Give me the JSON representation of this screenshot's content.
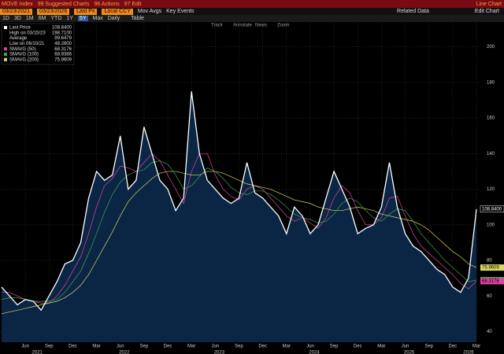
{
  "toolbar": {
    "ticker": "MOVE Index",
    "suggested": "99 Suggested Charts",
    "actions": "96 Actions",
    "edit": "97 Edit",
    "chart_kind": "Line Chart",
    "start_date": "03/23/2021",
    "end_date": "03/23/2026",
    "field": "Last Px",
    "currency": "Local CCY",
    "mov_avgs": "Mov Avgs",
    "key_events": "Key Events",
    "related": "Related Data",
    "edit_chart": "Edit Chart",
    "ranges": [
      "1D",
      "3D",
      "1M",
      "6M",
      "YTD",
      "1Y",
      "5Y",
      "Max",
      "Daily"
    ],
    "table": "Table",
    "tools": [
      "Track",
      "Annotate",
      "News",
      "Zoom"
    ]
  },
  "chart_data": {
    "type": "line",
    "area": true,
    "grid": true,
    "x": [
      "2021-03",
      "2021-04",
      "2021-05",
      "2021-06",
      "2021-07",
      "2021-08",
      "2021-09",
      "2021-10",
      "2021-11",
      "2021-12",
      "2022-01",
      "2022-02",
      "2022-03",
      "2022-04",
      "2022-05",
      "2022-06",
      "2022-07",
      "2022-08",
      "2022-09",
      "2022-10",
      "2022-11",
      "2022-12",
      "2023-01",
      "2023-02",
      "2023-03",
      "2023-04",
      "2023-05",
      "2023-06",
      "2023-07",
      "2023-08",
      "2023-09",
      "2023-10",
      "2023-11",
      "2023-12",
      "2024-01",
      "2024-02",
      "2024-03",
      "2024-04",
      "2024-05",
      "2024-06",
      "2024-07",
      "2024-08",
      "2024-09",
      "2024-10",
      "2024-11",
      "2024-12",
      "2025-01",
      "2025-02",
      "2025-03",
      "2025-04",
      "2025-05",
      "2025-06",
      "2025-07",
      "2025-08",
      "2025-09",
      "2025-10",
      "2025-11",
      "2025-12",
      "2026-01",
      "2026-02",
      "2026-03"
    ],
    "series": [
      {
        "name": "Last Price",
        "color": "#ffffff",
        "last_label": "108.8400",
        "values": [
          65,
          60,
          55,
          58,
          57,
          52,
          60,
          68,
          78,
          80,
          90,
          115,
          130,
          125,
          128,
          150,
          120,
          125,
          155,
          140,
          125,
          120,
          108,
          115,
          175,
          140,
          125,
          120,
          115,
          112,
          115,
          135,
          118,
          115,
          110,
          105,
          95,
          110,
          105,
          95,
          100,
          115,
          130,
          120,
          110,
          95,
          98,
          100,
          110,
          135,
          110,
          95,
          88,
          85,
          80,
          75,
          72,
          65,
          62,
          70,
          108.84
        ]
      },
      {
        "name": "SMAVG (100)",
        "color": "#3fa34d",
        "last_label": "68.9386",
        "values": [
          58,
          59,
          59,
          58,
          57,
          57,
          57,
          58,
          62,
          68,
          74,
          84,
          95,
          107,
          117,
          124,
          128,
          130,
          131,
          135,
          136,
          134,
          128,
          120,
          122,
          127,
          132,
          130,
          126,
          121,
          118,
          117,
          119,
          119,
          117,
          114,
          110,
          106,
          104,
          103,
          101,
          102,
          106,
          112,
          115,
          113,
          108,
          104,
          102,
          106,
          109,
          108,
          102,
          95,
          90,
          85,
          80,
          76,
          72,
          68,
          68.9386
        ]
      },
      {
        "name": "SMAVG (200)",
        "color": "#d8d860",
        "last_label": "75.9609",
        "values": [
          50,
          51,
          52,
          53,
          54,
          55,
          56,
          57,
          59,
          62,
          66,
          72,
          80,
          88,
          96,
          105,
          113,
          118,
          122,
          126,
          129,
          130,
          130,
          129,
          128,
          128,
          130,
          130,
          129,
          127,
          125,
          123,
          122,
          121,
          120,
          118,
          116,
          114,
          113,
          112,
          110,
          109,
          108,
          108,
          109,
          110,
          109,
          108,
          106,
          105,
          104,
          103,
          102,
          100,
          97,
          93,
          89,
          85,
          82,
          78,
          75.9609
        ]
      },
      {
        "name": "SMAVG (50)",
        "color": "#e0439f",
        "last_label": "68.3176",
        "values": [
          62,
          62,
          60,
          58,
          57,
          56,
          56,
          60,
          66,
          74,
          82,
          95,
          110,
          122,
          126,
          133,
          132,
          130,
          135,
          140,
          136,
          128,
          120,
          112,
          130,
          140,
          140,
          128,
          120,
          116,
          114,
          120,
          122,
          120,
          115,
          110,
          105,
          102,
          104,
          101,
          98,
          104,
          115,
          122,
          118,
          108,
          100,
          100,
          104,
          115,
          116,
          105,
          95,
          88,
          84,
          80,
          76,
          72,
          67,
          64,
          68.3176
        ]
      }
    ],
    "stats": [
      {
        "label": "High on 03/15/23",
        "value": "198.7100"
      },
      {
        "label": "Average",
        "value": "99.6479"
      },
      {
        "label": "Low on 06/10/21",
        "value": "48.2600"
      }
    ],
    "ylim": [
      34,
      214
    ],
    "yticks": [
      40,
      60,
      80,
      100,
      120,
      140,
      160,
      180,
      200
    ],
    "xticks": [
      {
        "value": "2021-06",
        "label": "Jun"
      },
      {
        "value": "2021-09",
        "label": "Sep"
      },
      {
        "value": "2021-12",
        "label": "Dec"
      },
      {
        "value": "2022-03",
        "label": "Mar"
      },
      {
        "value": "2022-06",
        "label": "Jun"
      },
      {
        "value": "2022-09",
        "label": "Sep"
      },
      {
        "value": "2022-12",
        "label": "Dec"
      },
      {
        "value": "2023-03",
        "label": "Mar"
      },
      {
        "value": "2023-06",
        "label": "Jun"
      },
      {
        "value": "2023-09",
        "label": "Sep"
      },
      {
        "value": "2023-12",
        "label": "Dec"
      },
      {
        "value": "2024-03",
        "label": "Mar"
      },
      {
        "value": "2024-06",
        "label": "Jun"
      },
      {
        "value": "2024-09",
        "label": "Sep"
      },
      {
        "value": "2024-12",
        "label": "Dec"
      },
      {
        "value": "2025-03",
        "label": "Mar"
      },
      {
        "value": "2025-06",
        "label": "Jun"
      },
      {
        "value": "2025-09",
        "label": "Sep"
      },
      {
        "value": "2025-12",
        "label": "Dec"
      },
      {
        "value": "2026-03",
        "label": "Mar"
      }
    ],
    "xyears": [
      "2021",
      "2022",
      "2023",
      "2024",
      "2025",
      "2026"
    ]
  }
}
